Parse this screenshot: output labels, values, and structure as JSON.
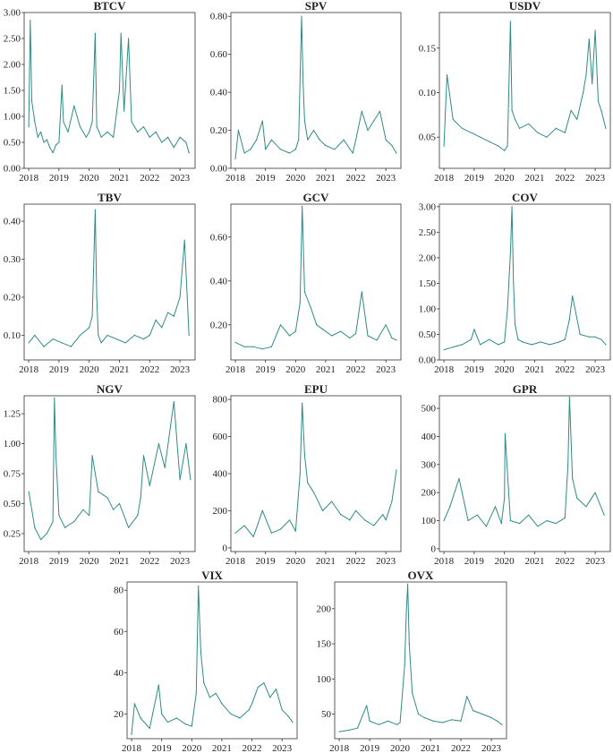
{
  "colors": {
    "series": "#2e8b86",
    "axis": "#333333",
    "text": "#222222"
  },
  "chart_data": [
    {
      "type": "line",
      "title": "BTCV",
      "series_color": "#2e8b86",
      "x_ticks": [
        "2018",
        "2019",
        "2020",
        "2021",
        "2022",
        "2023"
      ],
      "y_ticks": [
        "0.00",
        "0.50",
        "1.00",
        "1.50",
        "2.00",
        "2.50",
        "3.00"
      ],
      "ylim": [
        0,
        3.0
      ],
      "xlim": [
        2017.85,
        2023.5
      ],
      "x": [
        2018.0,
        2018.05,
        2018.1,
        2018.2,
        2018.3,
        2018.4,
        2018.5,
        2018.6,
        2018.7,
        2018.8,
        2018.9,
        2019.0,
        2019.1,
        2019.15,
        2019.3,
        2019.5,
        2019.7,
        2019.9,
        2020.0,
        2020.1,
        2020.2,
        2020.25,
        2020.4,
        2020.6,
        2020.8,
        2021.0,
        2021.05,
        2021.15,
        2021.3,
        2021.4,
        2021.6,
        2021.8,
        2022.0,
        2022.2,
        2022.4,
        2022.6,
        2022.8,
        2023.0,
        2023.2,
        2023.3
      ],
      "values": [
        0.8,
        2.85,
        1.3,
        0.9,
        0.6,
        0.7,
        0.5,
        0.55,
        0.4,
        0.3,
        0.45,
        0.5,
        1.6,
        0.9,
        0.7,
        1.2,
        0.8,
        0.6,
        0.7,
        0.9,
        2.6,
        0.8,
        0.6,
        0.7,
        0.6,
        1.5,
        2.6,
        1.1,
        2.5,
        0.9,
        0.7,
        0.8,
        0.6,
        0.7,
        0.5,
        0.6,
        0.4,
        0.6,
        0.5,
        0.3
      ]
    },
    {
      "type": "line",
      "title": "SPV",
      "series_color": "#2e8b86",
      "x_ticks": [
        "2018",
        "2019",
        "2020",
        "2021",
        "2022",
        "2023"
      ],
      "y_ticks": [
        "0.00",
        "0.20",
        "0.40",
        "0.60",
        "0.80"
      ],
      "ylim": [
        0,
        0.82
      ],
      "xlim": [
        2017.85,
        2023.5
      ],
      "x": [
        2018.0,
        2018.1,
        2018.3,
        2018.5,
        2018.7,
        2018.9,
        2019.0,
        2019.2,
        2019.5,
        2019.8,
        2020.0,
        2020.1,
        2020.2,
        2020.25,
        2020.3,
        2020.4,
        2020.6,
        2020.8,
        2021.0,
        2021.3,
        2021.6,
        2021.9,
        2022.0,
        2022.2,
        2022.4,
        2022.6,
        2022.8,
        2023.0,
        2023.2,
        2023.35
      ],
      "values": [
        0.05,
        0.2,
        0.08,
        0.1,
        0.15,
        0.25,
        0.1,
        0.15,
        0.1,
        0.08,
        0.1,
        0.15,
        0.8,
        0.45,
        0.25,
        0.15,
        0.2,
        0.15,
        0.12,
        0.1,
        0.15,
        0.08,
        0.15,
        0.3,
        0.2,
        0.25,
        0.3,
        0.15,
        0.12,
        0.08
      ]
    },
    {
      "type": "line",
      "title": "USDV",
      "series_color": "#2e8b86",
      "x_ticks": [
        "2018",
        "2019",
        "2020",
        "2021",
        "2022",
        "2023"
      ],
      "y_ticks": [
        "0.05",
        "0.10",
        "0.15"
      ],
      "ylim": [
        0.015,
        0.19
      ],
      "xlim": [
        2017.85,
        2023.5
      ],
      "x": [
        2018.0,
        2018.1,
        2018.3,
        2018.6,
        2018.9,
        2019.2,
        2019.5,
        2019.8,
        2020.0,
        2020.1,
        2020.2,
        2020.25,
        2020.35,
        2020.5,
        2020.8,
        2021.1,
        2021.4,
        2021.7,
        2022.0,
        2022.2,
        2022.4,
        2022.6,
        2022.7,
        2022.8,
        2022.9,
        2023.0,
        2023.1,
        2023.2,
        2023.35
      ],
      "values": [
        0.04,
        0.12,
        0.07,
        0.06,
        0.055,
        0.05,
        0.045,
        0.04,
        0.035,
        0.04,
        0.18,
        0.08,
        0.07,
        0.06,
        0.065,
        0.055,
        0.05,
        0.06,
        0.055,
        0.08,
        0.07,
        0.1,
        0.12,
        0.16,
        0.11,
        0.17,
        0.09,
        0.08,
        0.06
      ]
    },
    {
      "type": "line",
      "title": "TBV",
      "series_color": "#2e8b86",
      "x_ticks": [
        "2018",
        "2019",
        "2020",
        "2021",
        "2022",
        "2023"
      ],
      "y_ticks": [
        "0.10",
        "0.20",
        "0.30",
        "0.40"
      ],
      "ylim": [
        0.035,
        0.445
      ],
      "xlim": [
        2017.85,
        2023.5
      ],
      "x": [
        2018.0,
        2018.2,
        2018.5,
        2018.8,
        2019.1,
        2019.4,
        2019.7,
        2020.0,
        2020.1,
        2020.2,
        2020.25,
        2020.3,
        2020.4,
        2020.6,
        2020.9,
        2021.2,
        2021.5,
        2021.8,
        2022.0,
        2022.2,
        2022.4,
        2022.6,
        2022.8,
        2023.0,
        2023.15,
        2023.3
      ],
      "values": [
        0.08,
        0.1,
        0.07,
        0.09,
        0.08,
        0.07,
        0.1,
        0.12,
        0.15,
        0.43,
        0.2,
        0.1,
        0.08,
        0.1,
        0.09,
        0.08,
        0.1,
        0.09,
        0.1,
        0.14,
        0.12,
        0.16,
        0.15,
        0.2,
        0.35,
        0.1
      ]
    },
    {
      "type": "line",
      "title": "GCV",
      "series_color": "#2e8b86",
      "x_ticks": [
        "2018",
        "2019",
        "2020",
        "2021",
        "2022",
        "2023"
      ],
      "y_ticks": [
        "0.20",
        "0.40",
        "0.60"
      ],
      "ylim": [
        0.04,
        0.75
      ],
      "xlim": [
        2017.85,
        2023.5
      ],
      "x": [
        2018.0,
        2018.3,
        2018.6,
        2018.9,
        2019.2,
        2019.5,
        2019.8,
        2020.0,
        2020.15,
        2020.22,
        2020.3,
        2020.5,
        2020.7,
        2020.9,
        2021.2,
        2021.5,
        2021.8,
        2022.0,
        2022.2,
        2022.4,
        2022.7,
        2023.0,
        2023.2,
        2023.35
      ],
      "values": [
        0.12,
        0.1,
        0.1,
        0.09,
        0.1,
        0.2,
        0.15,
        0.17,
        0.3,
        0.74,
        0.35,
        0.28,
        0.2,
        0.18,
        0.15,
        0.17,
        0.14,
        0.16,
        0.35,
        0.15,
        0.13,
        0.2,
        0.14,
        0.13
      ]
    },
    {
      "type": "line",
      "title": "COV",
      "series_color": "#2e8b86",
      "x_ticks": [
        "2018",
        "2019",
        "2020",
        "2021",
        "2022",
        "2023"
      ],
      "y_ticks": [
        "0.00",
        "0.50",
        "1.00",
        "1.50",
        "2.00",
        "2.50",
        "3.00"
      ],
      "ylim": [
        0,
        3.05
      ],
      "xlim": [
        2017.85,
        2023.5
      ],
      "x": [
        2018.0,
        2018.3,
        2018.6,
        2018.9,
        2019.0,
        2019.2,
        2019.5,
        2019.8,
        2020.0,
        2020.1,
        2020.2,
        2020.25,
        2020.3,
        2020.35,
        2020.45,
        2020.6,
        2020.9,
        2021.2,
        2021.5,
        2021.8,
        2022.0,
        2022.15,
        2022.25,
        2022.5,
        2022.8,
        2023.0,
        2023.2,
        2023.35
      ],
      "values": [
        0.2,
        0.25,
        0.3,
        0.4,
        0.6,
        0.3,
        0.4,
        0.3,
        0.35,
        1.0,
        2.1,
        3.0,
        1.5,
        0.7,
        0.4,
        0.35,
        0.3,
        0.35,
        0.3,
        0.35,
        0.4,
        0.8,
        1.25,
        0.5,
        0.45,
        0.45,
        0.4,
        0.3
      ]
    },
    {
      "type": "line",
      "title": "NGV",
      "series_color": "#2e8b86",
      "x_ticks": [
        "2018",
        "2019",
        "2020",
        "2021",
        "2022",
        "2023"
      ],
      "y_ticks": [
        "0.25",
        "0.50",
        "0.75",
        "1.00",
        "1.25"
      ],
      "ylim": [
        0.1,
        1.4
      ],
      "xlim": [
        2017.85,
        2023.5
      ],
      "x": [
        2018.0,
        2018.1,
        2018.2,
        2018.4,
        2018.6,
        2018.8,
        2018.85,
        2018.9,
        2019.0,
        2019.2,
        2019.5,
        2019.8,
        2020.0,
        2020.1,
        2020.3,
        2020.6,
        2020.8,
        2021.0,
        2021.3,
        2021.6,
        2021.7,
        2021.8,
        2022.0,
        2022.3,
        2022.5,
        2022.8,
        2023.0,
        2023.2,
        2023.35
      ],
      "values": [
        0.6,
        0.45,
        0.3,
        0.2,
        0.25,
        0.35,
        1.38,
        0.9,
        0.4,
        0.3,
        0.35,
        0.45,
        0.4,
        0.9,
        0.6,
        0.55,
        0.45,
        0.5,
        0.3,
        0.4,
        0.55,
        0.9,
        0.65,
        1.0,
        0.8,
        1.35,
        0.7,
        1.0,
        0.7
      ]
    },
    {
      "type": "line",
      "title": "EPU",
      "series_color": "#2e8b86",
      "x_ticks": [
        "2018",
        "2019",
        "2020",
        "2021",
        "2022",
        "2023"
      ],
      "y_ticks": [
        "0",
        "200",
        "400",
        "600",
        "800"
      ],
      "ylim": [
        -20,
        820
      ],
      "xlim": [
        2017.85,
        2023.5
      ],
      "x": [
        2018.0,
        2018.3,
        2018.6,
        2018.9,
        2019.2,
        2019.5,
        2019.8,
        2020.0,
        2020.15,
        2020.22,
        2020.3,
        2020.4,
        2020.6,
        2020.9,
        2021.2,
        2021.5,
        2021.8,
        2022.0,
        2022.3,
        2022.6,
        2022.9,
        2023.0,
        2023.2,
        2023.35
      ],
      "values": [
        80,
        120,
        60,
        200,
        80,
        100,
        150,
        90,
        400,
        780,
        500,
        350,
        300,
        200,
        250,
        180,
        150,
        200,
        150,
        120,
        180,
        150,
        250,
        420
      ]
    },
    {
      "type": "line",
      "title": "GPR",
      "series_color": "#2e8b86",
      "x_ticks": [
        "2018",
        "2019",
        "2020",
        "2021",
        "2022",
        "2023"
      ],
      "y_ticks": [
        "0",
        "100",
        "200",
        "300",
        "400",
        "500"
      ],
      "ylim": [
        -10,
        545
      ],
      "xlim": [
        2017.85,
        2023.5
      ],
      "x": [
        2018.0,
        2018.2,
        2018.5,
        2018.8,
        2019.1,
        2019.4,
        2019.7,
        2019.9,
        2020.0,
        2020.02,
        2020.2,
        2020.5,
        2020.8,
        2021.1,
        2021.4,
        2021.7,
        2022.0,
        2022.1,
        2022.15,
        2022.25,
        2022.4,
        2022.7,
        2023.0,
        2023.3
      ],
      "values": [
        100,
        150,
        250,
        100,
        120,
        80,
        150,
        90,
        180,
        410,
        100,
        90,
        120,
        80,
        100,
        90,
        110,
        300,
        540,
        250,
        180,
        150,
        200,
        120
      ]
    },
    {
      "type": "line",
      "title": "VIX",
      "series_color": "#2e8b86",
      "x_ticks": [
        "2018",
        "2019",
        "2020",
        "2021",
        "2022",
        "2023"
      ],
      "y_ticks": [
        "20",
        "40",
        "60",
        "80"
      ],
      "ylim": [
        8,
        84
      ],
      "xlim": [
        2017.85,
        2023.5
      ],
      "x": [
        2018.0,
        2018.1,
        2018.3,
        2018.6,
        2018.9,
        2019.0,
        2019.2,
        2019.5,
        2019.8,
        2020.0,
        2020.15,
        2020.22,
        2020.3,
        2020.4,
        2020.6,
        2020.8,
        2021.0,
        2021.3,
        2021.6,
        2021.9,
        2022.0,
        2022.2,
        2022.4,
        2022.6,
        2022.8,
        2023.0,
        2023.2,
        2023.35
      ],
      "values": [
        10,
        25,
        18,
        13,
        34,
        20,
        16,
        18,
        15,
        14,
        30,
        82,
        50,
        35,
        28,
        30,
        25,
        20,
        18,
        22,
        25,
        33,
        35,
        28,
        32,
        22,
        19,
        16
      ]
    },
    {
      "type": "line",
      "title": "OVX",
      "series_color": "#2e8b86",
      "x_ticks": [
        "2018",
        "2019",
        "2020",
        "2021",
        "2022",
        "2023"
      ],
      "y_ticks": [
        "50",
        "100",
        "150",
        "200"
      ],
      "ylim": [
        15,
        238
      ],
      "xlim": [
        2017.85,
        2023.5
      ],
      "x": [
        2018.0,
        2018.3,
        2018.6,
        2018.9,
        2019.0,
        2019.3,
        2019.6,
        2019.9,
        2020.0,
        2020.15,
        2020.2,
        2020.25,
        2020.3,
        2020.4,
        2020.6,
        2020.8,
        2021.1,
        2021.4,
        2021.7,
        2022.0,
        2022.2,
        2022.4,
        2022.7,
        2023.0,
        2023.2,
        2023.35
      ],
      "values": [
        25,
        27,
        30,
        62,
        40,
        35,
        40,
        35,
        38,
        120,
        190,
        235,
        150,
        80,
        50,
        45,
        40,
        38,
        42,
        40,
        75,
        55,
        50,
        45,
        40,
        35
      ]
    }
  ]
}
